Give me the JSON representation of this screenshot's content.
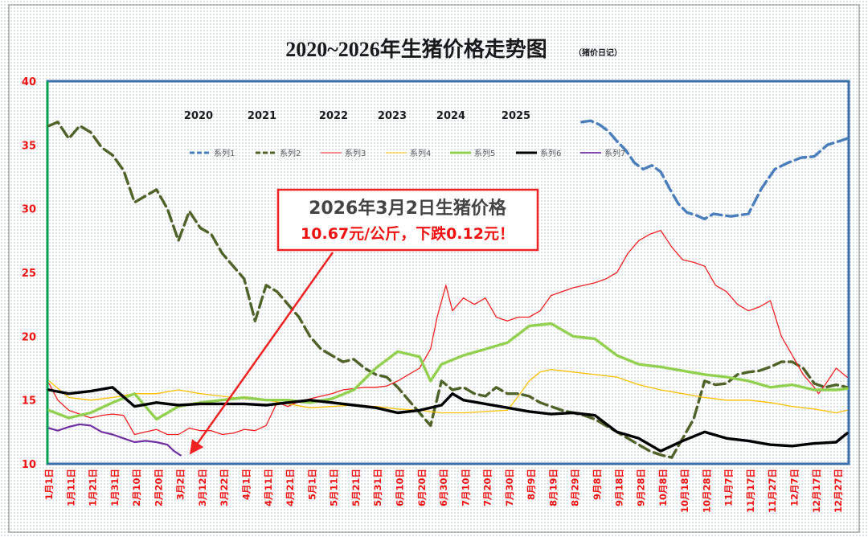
{
  "chart_data": {
    "type": "line",
    "title": "2020~2026年生猪价格走势图",
    "subtitle": "（猪价日记）",
    "ylim": [
      10,
      40
    ],
    "yticks": [
      10,
      15,
      20,
      25,
      30,
      35,
      40
    ],
    "x_tick_labels": [
      "1月1日",
      "1月11日",
      "1月21日",
      "1月31日",
      "2月10日",
      "2月20日",
      "3月2日",
      "3月12日",
      "3月22日",
      "4月1日",
      "4月11日",
      "4月21日",
      "5月1日",
      "5月11日",
      "5月21日",
      "5月31日",
      "6月10日",
      "6月20日",
      "6月30日",
      "7月10日",
      "7月20日",
      "7月30日",
      "8月9日",
      "8月19日",
      "8月29日",
      "9月8日",
      "9月18日",
      "9月28日",
      "10月8日",
      "10月18日",
      "10月28日",
      "11月7日",
      "11月17日",
      "11月27日",
      "12月7日",
      "12月17日",
      "12月27日"
    ],
    "year_labels": [
      "2020",
      "2021",
      "2022",
      "2023",
      "2024",
      "2025"
    ],
    "legend_position": "top-center",
    "series": [
      {
        "name": "系列1",
        "color": "#4a7ebb",
        "style": "dashed-thick",
        "days": [
          244,
          248,
          252,
          256,
          260,
          264,
          268,
          272,
          276,
          280,
          284,
          288,
          292,
          296,
          300,
          304,
          308,
          312,
          316,
          320,
          326,
          332,
          338,
          344,
          350,
          356,
          365
        ],
        "values": [
          36.8,
          36.9,
          36.6,
          36.1,
          35.3,
          34.6,
          33.6,
          33.1,
          33.4,
          32.9,
          31.6,
          30.4,
          29.7,
          29.5,
          29.2,
          29.6,
          29.5,
          29.4,
          29.5,
          29.6,
          31.6,
          33.1,
          33.6,
          34.0,
          34.1,
          35.0,
          35.5
        ]
      },
      {
        "name": "系列2",
        "color": "#4f6228",
        "style": "dashed-thick",
        "days": [
          1,
          5,
          10,
          15,
          20,
          25,
          30,
          35,
          40,
          45,
          50,
          55,
          60,
          65,
          70,
          75,
          80,
          85,
          90,
          95,
          100,
          105,
          110,
          115,
          120,
          125,
          130,
          135,
          140,
          145,
          150,
          155,
          160,
          165,
          170,
          175,
          180,
          185,
          190,
          195,
          200,
          205,
          210,
          215,
          220,
          225,
          230,
          235,
          240,
          245,
          250,
          255,
          260,
          265,
          270,
          275,
          280,
          285,
          290,
          295,
          300,
          305,
          310,
          315,
          320,
          325,
          330,
          335,
          340,
          345,
          350,
          355,
          360,
          365
        ],
        "values": [
          36.5,
          36.8,
          35.5,
          36.5,
          36.0,
          34.8,
          34.2,
          33.0,
          30.5,
          31.0,
          31.5,
          30.0,
          27.5,
          29.8,
          28.5,
          28.0,
          26.5,
          25.5,
          24.5,
          21.2,
          24.0,
          23.5,
          22.5,
          21.5,
          20.0,
          19.0,
          18.5,
          18.0,
          18.2,
          17.5,
          17.0,
          16.8,
          16.0,
          15.0,
          14.0,
          13.0,
          16.5,
          15.8,
          16.0,
          15.5,
          15.3,
          16.0,
          15.5,
          15.5,
          15.3,
          14.8,
          14.5,
          14.2,
          14.0,
          13.8,
          13.5,
          13.0,
          12.5,
          12.0,
          11.5,
          11.0,
          10.7,
          10.5,
          12.0,
          13.5,
          16.5,
          16.2,
          16.3,
          17.0,
          17.2,
          17.3,
          17.6,
          18.0,
          18.0,
          17.5,
          16.3,
          16.0,
          16.2,
          16.0
        ]
      },
      {
        "name": "系列3",
        "color": "#ee2222",
        "style": "solid-thin",
        "days": [
          1,
          5,
          10,
          15,
          20,
          25,
          30,
          35,
          40,
          45,
          50,
          55,
          60,
          65,
          70,
          75,
          80,
          85,
          90,
          95,
          100,
          105,
          110,
          115,
          120,
          125,
          130,
          135,
          140,
          145,
          150,
          155,
          160,
          165,
          170,
          175,
          178,
          182,
          185,
          190,
          195,
          200,
          205,
          210,
          215,
          220,
          225,
          230,
          235,
          240,
          245,
          250,
          255,
          260,
          265,
          270,
          275,
          280,
          285,
          290,
          295,
          300,
          305,
          310,
          315,
          320,
          325,
          330,
          335,
          340,
          345,
          350,
          352,
          355,
          360,
          365
        ],
        "values": [
          16.3,
          15.0,
          14.2,
          13.9,
          13.6,
          13.8,
          13.9,
          13.8,
          12.3,
          12.5,
          12.7,
          12.3,
          12.3,
          12.8,
          12.6,
          12.6,
          12.3,
          12.4,
          12.7,
          12.6,
          13.0,
          14.8,
          14.5,
          14.9,
          15.1,
          15.3,
          15.5,
          15.8,
          15.9,
          16.0,
          16.0,
          16.1,
          16.5,
          17.0,
          17.5,
          19.0,
          21.5,
          24.0,
          22.0,
          23.0,
          22.5,
          23.0,
          21.5,
          21.2,
          21.5,
          21.5,
          22.0,
          23.2,
          23.5,
          23.8,
          24.0,
          24.2,
          24.5,
          25.0,
          26.5,
          27.5,
          28.0,
          28.3,
          27.0,
          26.0,
          25.8,
          25.5,
          24.0,
          23.5,
          22.5,
          22.0,
          22.3,
          22.8,
          20.0,
          18.5,
          17.0,
          16.0,
          15.5,
          16.2,
          17.5,
          16.8
        ]
      },
      {
        "name": "系列4",
        "color": "#ffc000",
        "style": "solid-thin",
        "days": [
          1,
          10,
          20,
          30,
          40,
          50,
          60,
          70,
          80,
          90,
          100,
          110,
          120,
          130,
          140,
          150,
          160,
          170,
          180,
          190,
          200,
          210,
          215,
          220,
          225,
          230,
          240,
          250,
          260,
          270,
          280,
          290,
          300,
          310,
          320,
          330,
          340,
          350,
          360,
          365
        ],
        "values": [
          16.5,
          15.2,
          15.0,
          15.2,
          15.5,
          15.5,
          15.8,
          15.5,
          15.3,
          15.1,
          15.0,
          14.7,
          14.4,
          14.5,
          14.6,
          14.5,
          14.3,
          14.2,
          14.0,
          14.0,
          14.1,
          14.2,
          15.3,
          16.5,
          17.2,
          17.4,
          17.2,
          17.0,
          16.8,
          16.2,
          15.8,
          15.5,
          15.2,
          15.0,
          15.0,
          14.8,
          14.5,
          14.3,
          14.0,
          14.2
        ]
      },
      {
        "name": "系列5",
        "color": "#92d050",
        "style": "solid-thick",
        "days": [
          1,
          10,
          20,
          30,
          40,
          50,
          60,
          70,
          80,
          90,
          100,
          110,
          120,
          130,
          140,
          150,
          160,
          170,
          175,
          180,
          190,
          200,
          210,
          220,
          230,
          240,
          250,
          260,
          270,
          280,
          290,
          300,
          310,
          320,
          330,
          340,
          350,
          360,
          365
        ],
        "values": [
          14.2,
          13.6,
          14.0,
          14.8,
          15.5,
          13.5,
          14.5,
          14.8,
          15.0,
          15.2,
          15.0,
          15.0,
          14.8,
          15.1,
          15.8,
          17.5,
          18.8,
          18.4,
          16.5,
          17.8,
          18.5,
          19.0,
          19.5,
          20.8,
          21.0,
          20.0,
          19.8,
          18.5,
          17.8,
          17.6,
          17.3,
          17.0,
          16.8,
          16.5,
          16.0,
          16.2,
          15.8,
          15.8,
          15.9
        ]
      },
      {
        "name": "系列6",
        "color": "#000000",
        "style": "solid-thick",
        "days": [
          1,
          10,
          20,
          30,
          40,
          50,
          60,
          70,
          80,
          90,
          100,
          110,
          120,
          130,
          140,
          150,
          160,
          170,
          180,
          185,
          190,
          200,
          210,
          220,
          230,
          240,
          250,
          260,
          270,
          280,
          290,
          300,
          310,
          320,
          330,
          340,
          350,
          360,
          365
        ],
        "values": [
          15.8,
          15.5,
          15.7,
          16.0,
          14.5,
          14.8,
          14.6,
          14.7,
          14.7,
          14.7,
          14.6,
          14.8,
          15.0,
          14.8,
          14.6,
          14.4,
          14.0,
          14.2,
          14.6,
          15.5,
          15.0,
          14.7,
          14.4,
          14.1,
          13.9,
          14.0,
          13.8,
          12.5,
          12.0,
          11.0,
          11.8,
          12.5,
          12.0,
          11.8,
          11.5,
          11.4,
          11.6,
          11.7,
          12.4
        ]
      },
      {
        "name": "系列7",
        "color": "#7030a0",
        "style": "solid-medium",
        "days": [
          1,
          5,
          10,
          15,
          20,
          25,
          30,
          35,
          40,
          45,
          50,
          55,
          58,
          61
        ],
        "values": [
          12.8,
          12.6,
          12.9,
          13.1,
          13.0,
          12.5,
          12.3,
          12.0,
          11.7,
          11.8,
          11.7,
          11.5,
          11.0,
          10.67
        ]
      }
    ]
  },
  "callout": {
    "line1": "2026年3月2日生猪价格",
    "line2": "10.67元/公斤，下跌0.12元！"
  }
}
